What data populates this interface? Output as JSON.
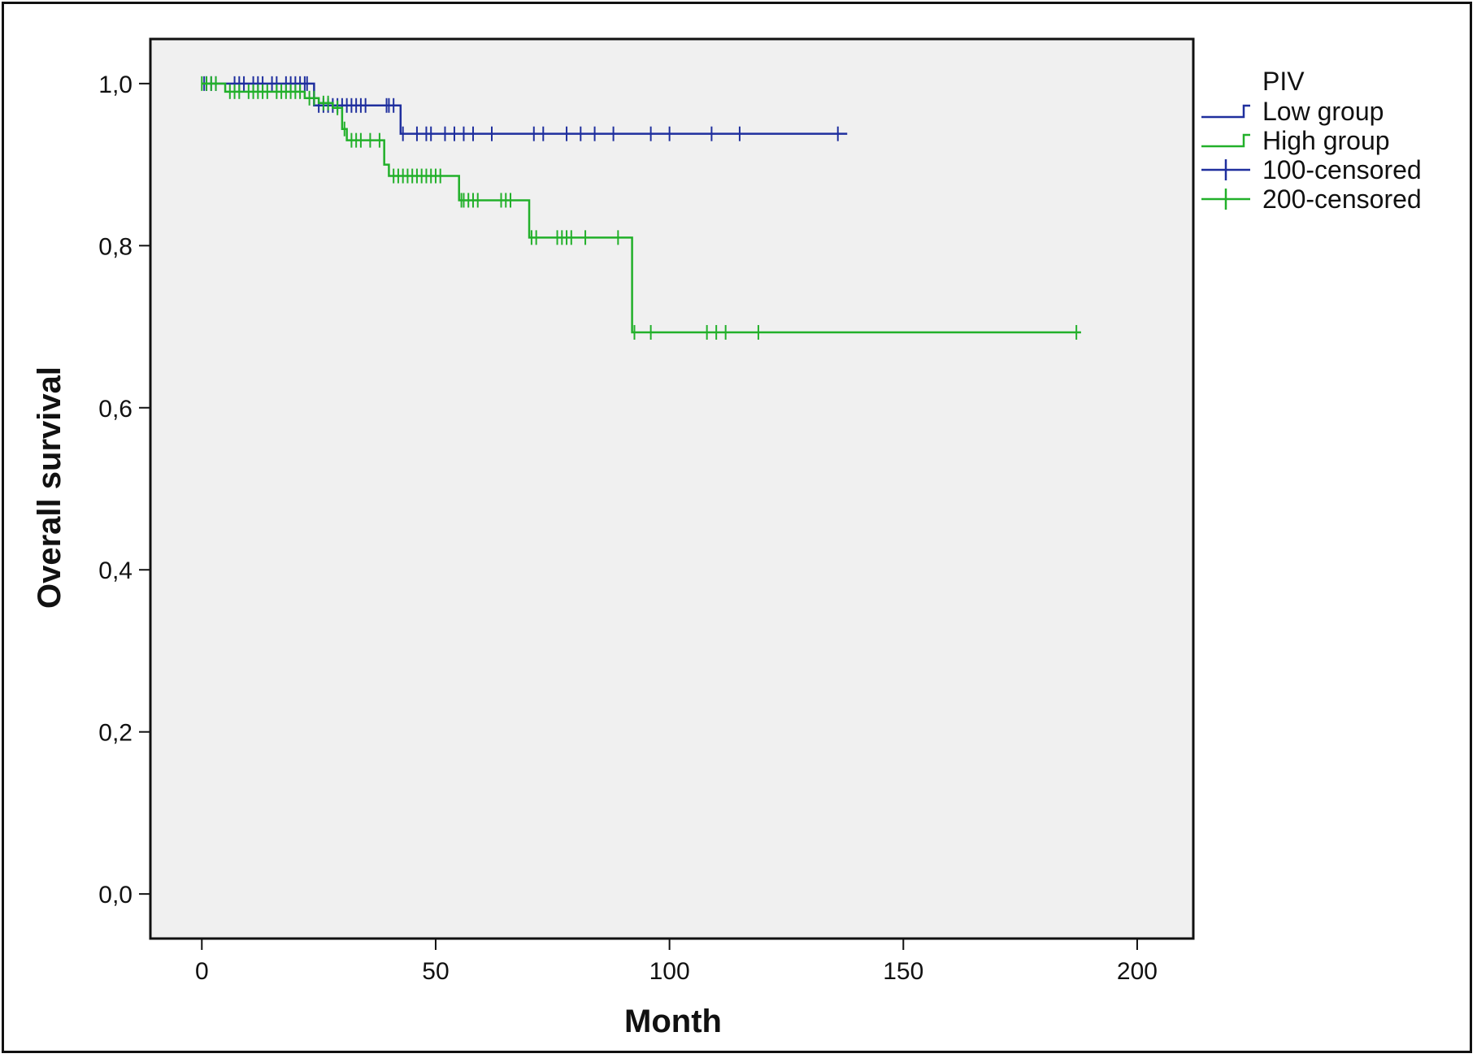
{
  "chart_data": {
    "type": "line",
    "subtype": "kaplan-meier step",
    "title": "",
    "xlabel": "Month",
    "ylabel": "Overall survival",
    "xlim": [
      -11,
      212
    ],
    "ylim": [
      -0.055,
      1.055
    ],
    "x_ticks": [
      0,
      50,
      100,
      150,
      200
    ],
    "x_tick_labels": [
      "0",
      "50",
      "100",
      "150",
      "200"
    ],
    "y_ticks": [
      0.0,
      0.2,
      0.4,
      0.6,
      0.8,
      1.0
    ],
    "y_tick_labels": [
      "0,0",
      "0,2",
      "0,4",
      "0,6",
      "0,8",
      "1,0"
    ],
    "grid": false,
    "plot_background": "#f0f0f0",
    "legend": {
      "title": "PIV",
      "placement": "right-outside-top",
      "entries": [
        {
          "label": "Low group",
          "kind": "step",
          "color": "#1f2f9e"
        },
        {
          "label": "High group",
          "kind": "step",
          "color": "#22b02a"
        },
        {
          "label": "100-censored",
          "kind": "censor",
          "color": "#1f2f9e"
        },
        {
          "label": "200-censored",
          "kind": "censor",
          "color": "#22b02a"
        }
      ]
    },
    "series": [
      {
        "name": "Low group",
        "color": "#1f2f9e",
        "steps": [
          [
            0,
            1.0
          ],
          [
            24,
            0.973
          ],
          [
            42.5,
            0.938
          ],
          [
            138,
            0.938
          ]
        ],
        "censored": [
          [
            0.5,
            1.0
          ],
          [
            1,
            1.0
          ],
          [
            2,
            1.0
          ],
          [
            3,
            1.0
          ],
          [
            7,
            1.0
          ],
          [
            8,
            1.0
          ],
          [
            9,
            1.0
          ],
          [
            11,
            1.0
          ],
          [
            12,
            1.0
          ],
          [
            13,
            1.0
          ],
          [
            15,
            1.0
          ],
          [
            16,
            1.0
          ],
          [
            18,
            1.0
          ],
          [
            19,
            1.0
          ],
          [
            20,
            1.0
          ],
          [
            21,
            1.0
          ],
          [
            22,
            1.0
          ],
          [
            22.5,
            1.0
          ],
          [
            25,
            0.973
          ],
          [
            26,
            0.973
          ],
          [
            27,
            0.973
          ],
          [
            28,
            0.973
          ],
          [
            29,
            0.973
          ],
          [
            30,
            0.973
          ],
          [
            31,
            0.973
          ],
          [
            32,
            0.973
          ],
          [
            33,
            0.973
          ],
          [
            34,
            0.973
          ],
          [
            35,
            0.973
          ],
          [
            39.5,
            0.973
          ],
          [
            40,
            0.973
          ],
          [
            41,
            0.973
          ],
          [
            43,
            0.938
          ],
          [
            46,
            0.938
          ],
          [
            48,
            0.938
          ],
          [
            49,
            0.938
          ],
          [
            52,
            0.938
          ],
          [
            54,
            0.938
          ],
          [
            56,
            0.938
          ],
          [
            58,
            0.938
          ],
          [
            62,
            0.938
          ],
          [
            71,
            0.938
          ],
          [
            73,
            0.938
          ],
          [
            78,
            0.938
          ],
          [
            81,
            0.938
          ],
          [
            84,
            0.938
          ],
          [
            88,
            0.938
          ],
          [
            96,
            0.938
          ],
          [
            100,
            0.938
          ],
          [
            109,
            0.938
          ],
          [
            115,
            0.938
          ],
          [
            136,
            0.938
          ]
        ]
      },
      {
        "name": "High group",
        "color": "#22b02a",
        "steps": [
          [
            0,
            1.0
          ],
          [
            5,
            0.99
          ],
          [
            22,
            0.982
          ],
          [
            25,
            0.976
          ],
          [
            28,
            0.97
          ],
          [
            30,
            0.944
          ],
          [
            31,
            0.93
          ],
          [
            39,
            0.9
          ],
          [
            40,
            0.886
          ],
          [
            55,
            0.856
          ],
          [
            70,
            0.81
          ],
          [
            92,
            0.693
          ],
          [
            188,
            0.693
          ]
        ],
        "censored": [
          [
            0,
            1.0
          ],
          [
            1,
            1.0
          ],
          [
            2,
            1.0
          ],
          [
            3,
            1.0
          ],
          [
            6,
            0.99
          ],
          [
            7,
            0.99
          ],
          [
            8,
            0.99
          ],
          [
            10,
            0.99
          ],
          [
            11,
            0.99
          ],
          [
            12,
            0.99
          ],
          [
            13,
            0.99
          ],
          [
            14,
            0.99
          ],
          [
            16,
            0.99
          ],
          [
            17,
            0.99
          ],
          [
            18,
            0.99
          ],
          [
            19,
            0.99
          ],
          [
            20,
            0.99
          ],
          [
            21,
            0.99
          ],
          [
            23,
            0.982
          ],
          [
            24,
            0.982
          ],
          [
            26,
            0.976
          ],
          [
            27,
            0.976
          ],
          [
            29,
            0.97
          ],
          [
            30.5,
            0.944
          ],
          [
            32,
            0.93
          ],
          [
            33,
            0.93
          ],
          [
            34,
            0.93
          ],
          [
            36,
            0.93
          ],
          [
            38,
            0.93
          ],
          [
            41,
            0.886
          ],
          [
            42,
            0.886
          ],
          [
            43,
            0.886
          ],
          [
            44,
            0.886
          ],
          [
            45,
            0.886
          ],
          [
            46,
            0.886
          ],
          [
            47,
            0.886
          ],
          [
            48,
            0.886
          ],
          [
            49,
            0.886
          ],
          [
            50,
            0.886
          ],
          [
            51,
            0.886
          ],
          [
            55.5,
            0.856
          ],
          [
            56,
            0.856
          ],
          [
            57,
            0.856
          ],
          [
            58,
            0.856
          ],
          [
            59,
            0.856
          ],
          [
            64,
            0.856
          ],
          [
            65,
            0.856
          ],
          [
            66,
            0.856
          ],
          [
            70.5,
            0.81
          ],
          [
            71.5,
            0.81
          ],
          [
            76,
            0.81
          ],
          [
            77,
            0.81
          ],
          [
            78,
            0.81
          ],
          [
            79,
            0.81
          ],
          [
            82,
            0.81
          ],
          [
            89,
            0.81
          ],
          [
            92.5,
            0.693
          ],
          [
            96,
            0.693
          ],
          [
            108,
            0.693
          ],
          [
            110,
            0.693
          ],
          [
            112,
            0.693
          ],
          [
            119,
            0.693
          ],
          [
            187,
            0.693
          ]
        ]
      }
    ]
  }
}
